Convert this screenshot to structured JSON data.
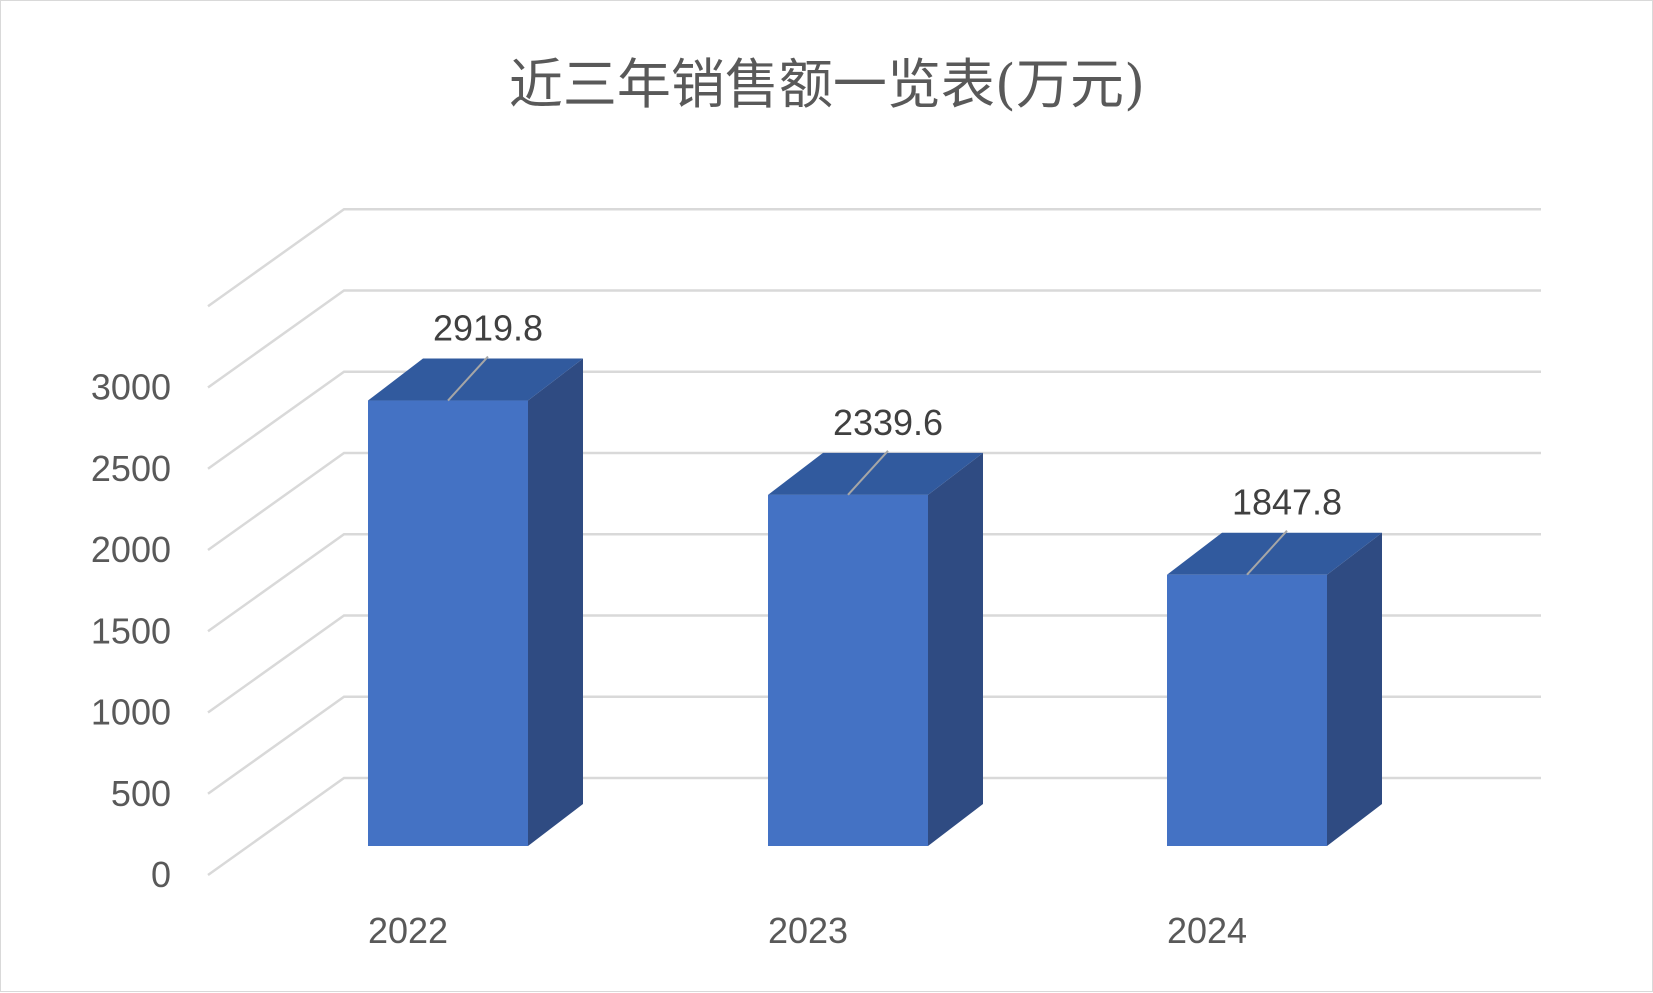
{
  "chart_data": {
    "type": "bar",
    "title": "近三年销售额一览表(万元)",
    "categories": [
      "2022",
      "2023",
      "2024"
    ],
    "values": [
      2919.8,
      2339.6,
      1847.8
    ],
    "data_labels": [
      "2919.8",
      "2339.6",
      "1847.8"
    ],
    "y_ticks": [
      "0",
      "500",
      "1000",
      "1500",
      "2000",
      "2500",
      "3000"
    ],
    "ylim": [
      0,
      3500
    ],
    "grid": true,
    "legend": "none",
    "style": "3d-column",
    "colors": {
      "front": "#4472c4",
      "side": "#2f4b82",
      "top": "#315a9e",
      "grid": "#d9d9d9"
    }
  }
}
